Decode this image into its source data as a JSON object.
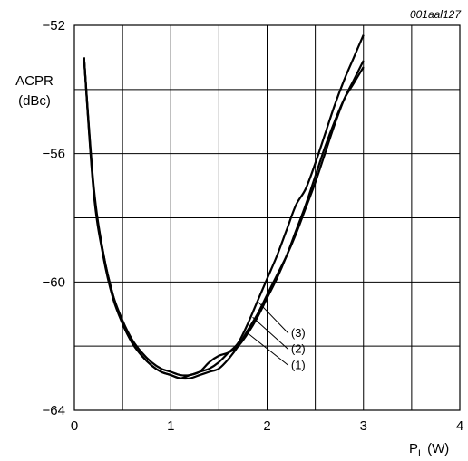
{
  "figure_code": "001aal127",
  "chart_data": {
    "type": "line",
    "ylabel_line1": "ACPR",
    "ylabel_line2": "(dBc)",
    "xlabel_main": "P",
    "xlabel_sub": "L",
    "xlabel_unit": "(W)",
    "xlim": [
      0,
      4
    ],
    "ylim": [
      -64,
      -52
    ],
    "x_ticks": [
      0,
      1,
      2,
      3,
      4
    ],
    "x_tick_labels": [
      "0",
      "1",
      "2",
      "3",
      "4"
    ],
    "y_ticks": [
      -64,
      -60,
      -56,
      -52
    ],
    "y_tick_labels": [
      "−64",
      "−60",
      "−56",
      "−52"
    ],
    "grid": true,
    "series": [
      {
        "name": "(1)",
        "x": [
          0.1,
          0.2,
          0.3,
          0.4,
          0.5,
          0.6,
          0.7,
          0.8,
          0.9,
          1.0,
          1.1,
          1.2,
          1.3,
          1.4,
          1.5,
          1.6,
          1.7,
          1.8,
          1.9,
          2.0,
          2.1,
          2.2,
          2.3,
          2.4,
          2.5,
          2.6,
          2.7,
          2.8,
          2.9,
          3.0
        ],
        "y": [
          -53.0,
          -57.2,
          -59.2,
          -60.5,
          -61.3,
          -61.9,
          -62.3,
          -62.6,
          -62.8,
          -62.9,
          -63.0,
          -63.0,
          -62.9,
          -62.8,
          -62.7,
          -62.4,
          -62.0,
          -61.5,
          -61.0,
          -60.4,
          -59.8,
          -59.2,
          -58.5,
          -57.7,
          -56.9,
          -56.0,
          -55.1,
          -54.3,
          -53.7,
          -53.1
        ]
      },
      {
        "name": "(2)",
        "x": [
          0.1,
          0.2,
          0.3,
          0.4,
          0.5,
          0.6,
          0.7,
          0.8,
          0.9,
          1.0,
          1.1,
          1.2,
          1.3,
          1.4,
          1.5,
          1.6,
          1.7,
          1.8,
          1.9,
          2.0,
          2.1,
          2.2,
          2.3,
          2.4,
          2.5,
          2.6,
          2.7,
          2.8,
          2.9,
          3.0
        ],
        "y": [
          -53.0,
          -57.1,
          -59.1,
          -60.4,
          -61.3,
          -61.9,
          -62.3,
          -62.6,
          -62.8,
          -62.9,
          -63.0,
          -62.9,
          -62.8,
          -62.5,
          -62.3,
          -62.2,
          -62.0,
          -61.6,
          -61.1,
          -60.5,
          -59.9,
          -59.2,
          -58.4,
          -57.6,
          -56.7,
          -55.8,
          -55.0,
          -54.3,
          -53.8,
          -53.3
        ]
      },
      {
        "name": "(3)",
        "x": [
          0.1,
          0.2,
          0.3,
          0.4,
          0.5,
          0.6,
          0.7,
          0.8,
          0.9,
          1.0,
          1.1,
          1.2,
          1.3,
          1.4,
          1.5,
          1.6,
          1.7,
          1.8,
          1.9,
          2.0,
          2.1,
          2.2,
          2.3,
          2.4,
          2.5,
          2.6,
          2.7,
          2.8,
          2.9,
          3.0
        ],
        "y": [
          -53.0,
          -57.0,
          -59.1,
          -60.4,
          -61.2,
          -61.8,
          -62.2,
          -62.5,
          -62.7,
          -62.8,
          -62.9,
          -62.9,
          -62.8,
          -62.7,
          -62.5,
          -62.2,
          -61.9,
          -61.3,
          -60.6,
          -59.9,
          -59.2,
          -58.4,
          -57.6,
          -57.1,
          -56.3,
          -55.4,
          -54.5,
          -53.7,
          -53.0,
          -52.3
        ]
      }
    ],
    "annotations": [
      "(3)",
      "(2)",
      "(1)"
    ]
  }
}
